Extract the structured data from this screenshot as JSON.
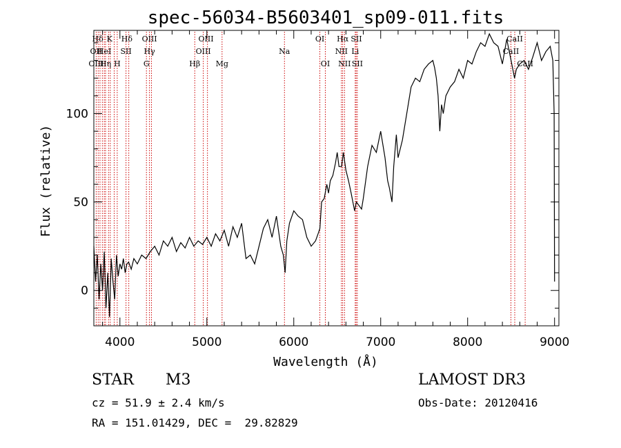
{
  "chart_data": {
    "type": "line",
    "title": "spec-56034-B5603401_sp09-011.fits",
    "xlabel": "Wavelength (Å)",
    "ylabel": "Flux (relative)",
    "xlim": [
      3700,
      9050
    ],
    "ylim": [
      -20,
      147
    ],
    "xticks": [
      4000,
      5000,
      6000,
      7000,
      8000,
      9000
    ],
    "yticks": [
      0,
      50,
      100
    ],
    "grid": false,
    "series": [
      {
        "name": "flux",
        "x": [
          3700,
          3720,
          3740,
          3760,
          3780,
          3800,
          3820,
          3840,
          3860,
          3880,
          3900,
          3920,
          3940,
          3960,
          3980,
          4000,
          4020,
          4040,
          4060,
          4080,
          4100,
          4130,
          4160,
          4200,
          4250,
          4300,
          4350,
          4400,
          4450,
          4500,
          4550,
          4600,
          4650,
          4700,
          4750,
          4800,
          4850,
          4900,
          4950,
          5000,
          5050,
          5100,
          5150,
          5200,
          5250,
          5300,
          5350,
          5400,
          5450,
          5500,
          5550,
          5600,
          5650,
          5700,
          5750,
          5800,
          5850,
          5880,
          5900,
          5920,
          5950,
          6000,
          6050,
          6100,
          6150,
          6200,
          6250,
          6280,
          6300,
          6320,
          6350,
          6380,
          6400,
          6420,
          6450,
          6480,
          6500,
          6520,
          6550,
          6570,
          6600,
          6630,
          6660,
          6700,
          6720,
          6750,
          6780,
          6800,
          6850,
          6900,
          6950,
          7000,
          7050,
          7080,
          7100,
          7130,
          7150,
          7180,
          7200,
          7250,
          7300,
          7350,
          7400,
          7450,
          7500,
          7550,
          7600,
          7620,
          7640,
          7660,
          7680,
          7700,
          7720,
          7750,
          7800,
          7850,
          7900,
          7950,
          8000,
          8050,
          8100,
          8150,
          8200,
          8250,
          8300,
          8350,
          8400,
          8450,
          8500,
          8520,
          8540,
          8560,
          8600,
          8650,
          8700,
          8750,
          8800,
          8850,
          8900,
          8950,
          8980,
          8995,
          9000
        ],
        "y": [
          25,
          5,
          20,
          -5,
          15,
          0,
          22,
          -10,
          10,
          -15,
          18,
          5,
          -5,
          20,
          8,
          15,
          12,
          18,
          10,
          15,
          16,
          12,
          18,
          15,
          20,
          18,
          22,
          25,
          20,
          28,
          25,
          30,
          22,
          27,
          24,
          30,
          25,
          28,
          26,
          30,
          25,
          32,
          28,
          34,
          25,
          36,
          30,
          38,
          18,
          20,
          15,
          25,
          35,
          40,
          30,
          42,
          25,
          20,
          10,
          28,
          38,
          45,
          42,
          40,
          30,
          25,
          28,
          32,
          35,
          50,
          52,
          60,
          55,
          62,
          65,
          72,
          78,
          70,
          70,
          78,
          68,
          62,
          55,
          45,
          50,
          48,
          46,
          52,
          70,
          82,
          78,
          90,
          75,
          62,
          58,
          50,
          70,
          88,
          75,
          85,
          100,
          115,
          120,
          118,
          125,
          128,
          130,
          126,
          120,
          110,
          90,
          105,
          100,
          110,
          115,
          118,
          125,
          120,
          130,
          128,
          135,
          140,
          138,
          145,
          140,
          138,
          128,
          142,
          130,
          125,
          120,
          125,
          128,
          130,
          125,
          132,
          140,
          130,
          135,
          138,
          130,
          100,
          5
        ]
      }
    ],
    "line_labels": [
      {
        "text": "Hδ",
        "x": 3745,
        "row": 0
      },
      {
        "text": "K",
        "x": 3880,
        "row": 0
      },
      {
        "text": "Hδ",
        "x": 4080,
        "row": 0
      },
      {
        "text": "OIII",
        "x": 4340,
        "row": 0
      },
      {
        "text": "OIII",
        "x": 4990,
        "row": 0
      },
      {
        "text": "OI",
        "x": 6300,
        "row": 0
      },
      {
        "text": "Hα",
        "x": 6563,
        "row": 0
      },
      {
        "text": "SII",
        "x": 6720,
        "row": 0
      },
      {
        "text": "CaII",
        "x": 8542,
        "row": 0
      },
      {
        "text": "OII",
        "x": 3727,
        "row": 1
      },
      {
        "text": "HeI",
        "x": 3820,
        "row": 1
      },
      {
        "text": "SII",
        "x": 4070,
        "row": 1
      },
      {
        "text": "Hγ",
        "x": 4340,
        "row": 1
      },
      {
        "text": "OIII",
        "x": 4959,
        "row": 1
      },
      {
        "text": "Na",
        "x": 5893,
        "row": 1
      },
      {
        "text": "NII",
        "x": 6548,
        "row": 1
      },
      {
        "text": "Li",
        "x": 6707,
        "row": 1
      },
      {
        "text": "CaII",
        "x": 8498,
        "row": 1
      },
      {
        "text": "OIII",
        "x": 3727,
        "row": 2
      },
      {
        "text": "Hη",
        "x": 3835,
        "row": 2
      },
      {
        "text": "H",
        "x": 3969,
        "row": 2
      },
      {
        "text": "G",
        "x": 4305,
        "row": 2
      },
      {
        "text": "Hβ",
        "x": 4861,
        "row": 2
      },
      {
        "text": "Mg",
        "x": 5175,
        "row": 2
      },
      {
        "text": "OI",
        "x": 6363,
        "row": 2
      },
      {
        "text": "NII",
        "x": 6584,
        "row": 2
      },
      {
        "text": "SII",
        "x": 6731,
        "row": 2
      },
      {
        "text": "CaII",
        "x": 8662,
        "row": 2
      }
    ],
    "line_markers": [
      3727,
      3750,
      3771,
      3798,
      3820,
      3835,
      3869,
      3889,
      3934,
      3969,
      4070,
      4102,
      4305,
      4340,
      4363,
      4861,
      4959,
      5007,
      5175,
      5893,
      6300,
      6363,
      6548,
      6563,
      6584,
      6707,
      6717,
      6731,
      8498,
      8542,
      8662
    ],
    "marker_color": "#cc0000"
  },
  "info": {
    "class_label": "STAR",
    "subclass_label": "M3",
    "survey_label": "LAMOST DR3",
    "cz_line": "cz = 51.9 ± 2.4 km/s",
    "obs_date_line": "Obs-Date: 20120416",
    "coords_line": "RA = 151.01429, DEC =  29.82829"
  }
}
